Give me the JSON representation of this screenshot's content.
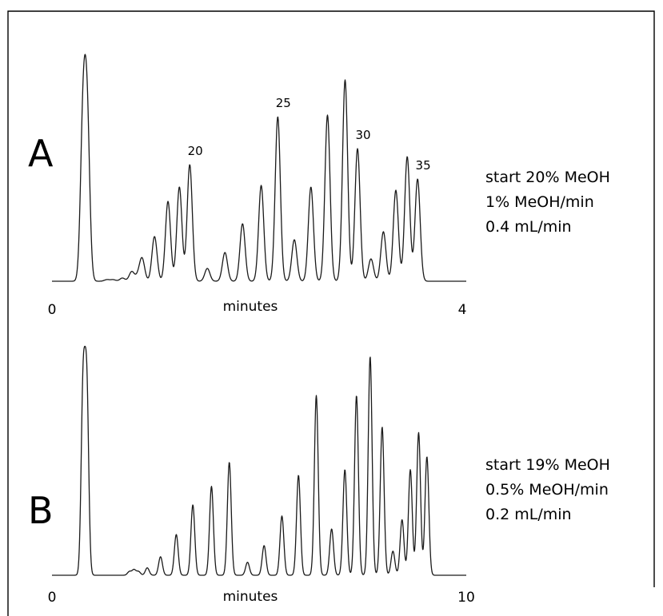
{
  "chart_data": [
    {
      "type": "line",
      "panel_label": "A",
      "xlabel": "minutes",
      "xlim": [
        0,
        4
      ],
      "x_ticks": [
        "0",
        "4"
      ],
      "conditions": [
        "start 20% MeOH",
        "1% MeOH/min",
        "0.4 mL/min"
      ],
      "peak_labels": [
        {
          "text": "20",
          "x": 1.33
        },
        {
          "text": "25",
          "x": 2.18
        },
        {
          "text": "30",
          "x": 2.95
        },
        {
          "text": "35",
          "x": 3.53
        }
      ],
      "peaks": [
        {
          "x": 0.3,
          "h": 0.99
        },
        {
          "x": 0.34,
          "h": 0.98
        },
        {
          "x": 0.53,
          "h": 0.01
        },
        {
          "x": 0.59,
          "h": 0.01
        },
        {
          "x": 0.68,
          "h": 0.02
        },
        {
          "x": 0.77,
          "h": 0.06
        },
        {
          "x": 0.83,
          "h": 0.03
        },
        {
          "x": 0.87,
          "h": 0.14
        },
        {
          "x": 0.99,
          "h": 0.28
        },
        {
          "x": 1.12,
          "h": 0.5
        },
        {
          "x": 1.23,
          "h": 0.59
        },
        {
          "x": 1.33,
          "h": 0.73
        },
        {
          "x": 1.5,
          "h": 0.08
        },
        {
          "x": 1.67,
          "h": 0.18
        },
        {
          "x": 1.84,
          "h": 0.36
        },
        {
          "x": 2.02,
          "h": 0.6
        },
        {
          "x": 2.18,
          "h": 1.03
        },
        {
          "x": 2.34,
          "h": 0.26
        },
        {
          "x": 2.5,
          "h": 0.59
        },
        {
          "x": 2.66,
          "h": 1.04
        },
        {
          "x": 2.83,
          "h": 1.26
        },
        {
          "x": 2.95,
          "h": 0.83
        },
        {
          "x": 3.08,
          "h": 0.14
        },
        {
          "x": 3.2,
          "h": 0.31
        },
        {
          "x": 3.32,
          "h": 0.57
        },
        {
          "x": 3.43,
          "h": 0.78
        },
        {
          "x": 3.53,
          "h": 0.64
        }
      ]
    },
    {
      "type": "line",
      "panel_label": "B",
      "xlabel": "minutes",
      "xlim": [
        0,
        10
      ],
      "x_ticks": [
        "0",
        "10"
      ],
      "conditions": [
        "start 19% MeOH",
        "0.5% MeOH/min",
        "0.2 mL/min"
      ],
      "peak_labels": [],
      "peaks": [
        {
          "x": 0.75,
          "h": 0.99
        },
        {
          "x": 0.84,
          "h": 0.99
        },
        {
          "x": 1.87,
          "h": 0.02
        },
        {
          "x": 1.98,
          "h": 0.03
        },
        {
          "x": 2.09,
          "h": 0.02
        },
        {
          "x": 2.3,
          "h": 0.04
        },
        {
          "x": 2.62,
          "h": 0.1
        },
        {
          "x": 3.0,
          "h": 0.22
        },
        {
          "x": 3.4,
          "h": 0.38
        },
        {
          "x": 3.85,
          "h": 0.48
        },
        {
          "x": 4.28,
          "h": 0.61
        },
        {
          "x": 4.72,
          "h": 0.07
        },
        {
          "x": 5.12,
          "h": 0.16
        },
        {
          "x": 5.55,
          "h": 0.32
        },
        {
          "x": 5.95,
          "h": 0.54
        },
        {
          "x": 6.38,
          "h": 0.97
        },
        {
          "x": 6.75,
          "h": 0.25
        },
        {
          "x": 7.07,
          "h": 0.57
        },
        {
          "x": 7.35,
          "h": 0.97
        },
        {
          "x": 7.68,
          "h": 1.18
        },
        {
          "x": 7.97,
          "h": 0.8
        },
        {
          "x": 8.23,
          "h": 0.13
        },
        {
          "x": 8.45,
          "h": 0.3
        },
        {
          "x": 8.65,
          "h": 0.57
        },
        {
          "x": 8.85,
          "h": 0.77
        },
        {
          "x": 9.05,
          "h": 0.64
        }
      ]
    }
  ]
}
